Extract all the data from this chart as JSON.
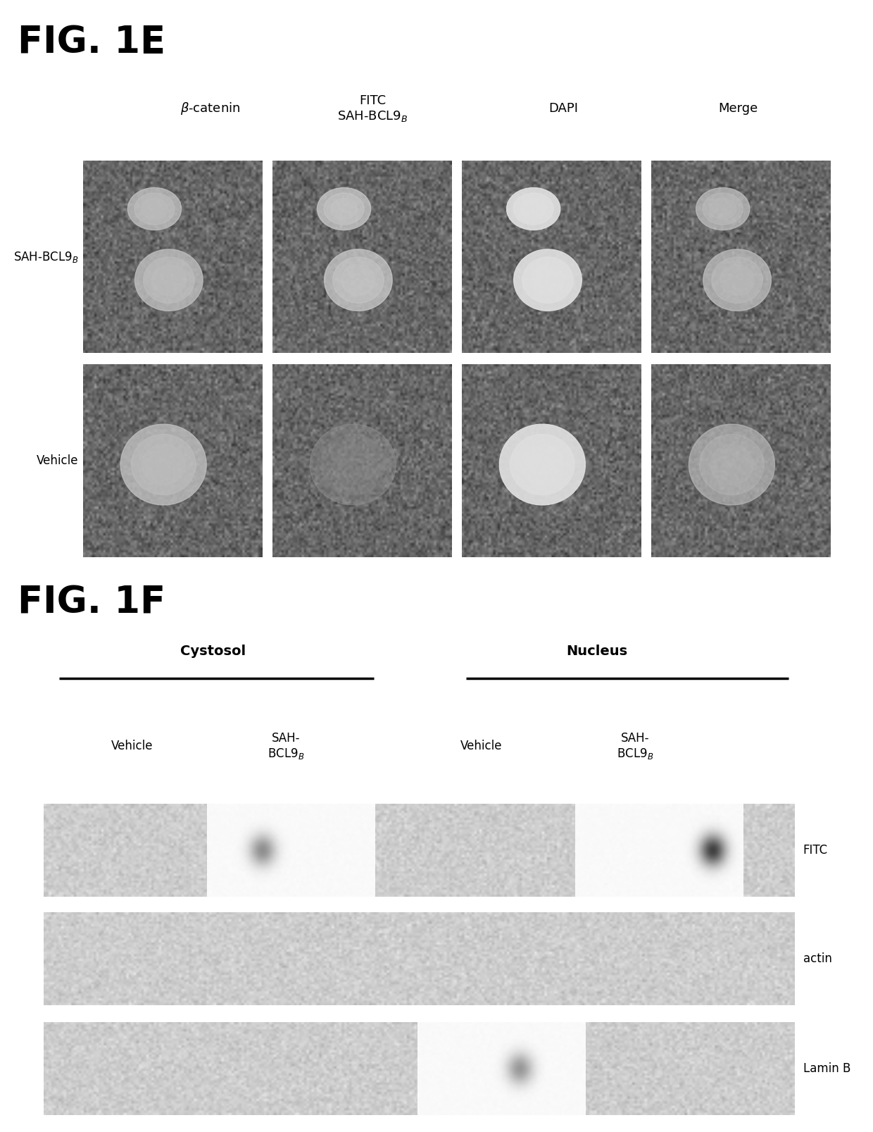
{
  "fig_title_E": "FIG. 1E",
  "fig_title_F": "FIG. 1F",
  "col_headers_E_line1": [
    "β-catenin",
    "FITC",
    "DAPI",
    "Merge"
  ],
  "col_headers_E_line2": [
    "",
    "SAH-BCL9$_B$",
    "",
    ""
  ],
  "row_labels_E": [
    "SAH-BCL9$_B$",
    "Vehicle"
  ],
  "cytosol_label": "Cystosol",
  "nucleus_label": "Nucleus",
  "col_headers_F": [
    "Vehicle",
    "SAH-\nBCL9$_B$",
    "Vehicle",
    "SAH-\nBCL9$_B$"
  ],
  "blot_labels": [
    "FITC",
    "actin",
    "Lamin B"
  ],
  "bg_color": "#ffffff"
}
